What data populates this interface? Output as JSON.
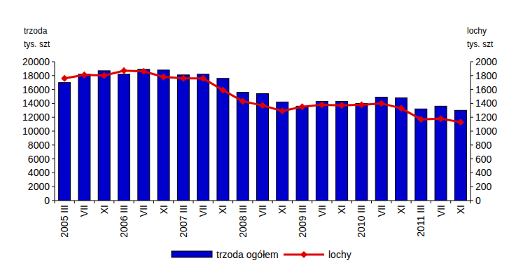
{
  "chart_data": {
    "type": "bar",
    "ylabel": [
      "trzoda",
      "tys. szt"
    ],
    "y2label": [
      "lochy",
      "tys. szt"
    ],
    "categories": [
      "2005 III",
      "VII",
      "XI",
      "2006 III",
      "VII",
      "XI",
      "2007 III",
      "VII",
      "XI",
      "2008 III",
      "VII",
      "XI",
      "2009 III",
      "VII",
      "XI",
      "2010 III",
      "VII",
      "XI",
      "2011 III",
      "VII",
      "XI"
    ],
    "series": [
      {
        "name": "trzoda ogółem",
        "type": "bar",
        "color": "#0000cc",
        "axis": "y",
        "values": [
          17000,
          18200,
          18700,
          18200,
          18900,
          18800,
          18100,
          18200,
          17600,
          15600,
          15400,
          14200,
          13600,
          14300,
          14300,
          14000,
          14900,
          14800,
          13200,
          13600,
          13000
        ]
      },
      {
        "name": "lochy",
        "type": "line",
        "color": "#e00000",
        "axis": "y2",
        "marker": "diamond",
        "values": [
          1760,
          1810,
          1800,
          1870,
          1860,
          1780,
          1760,
          1760,
          1590,
          1430,
          1370,
          1290,
          1350,
          1380,
          1370,
          1380,
          1400,
          1330,
          1170,
          1180,
          1130
        ]
      }
    ],
    "ylim": [
      0,
      20000
    ],
    "yticks": [
      0,
      2000,
      4000,
      6000,
      8000,
      10000,
      12000,
      14000,
      16000,
      18000,
      20000
    ],
    "y2lim": [
      0,
      2000
    ],
    "y2ticks": [
      0,
      200,
      400,
      600,
      800,
      1000,
      1200,
      1400,
      1600,
      1800,
      2000
    ],
    "grid": false,
    "legend": "bottom"
  }
}
